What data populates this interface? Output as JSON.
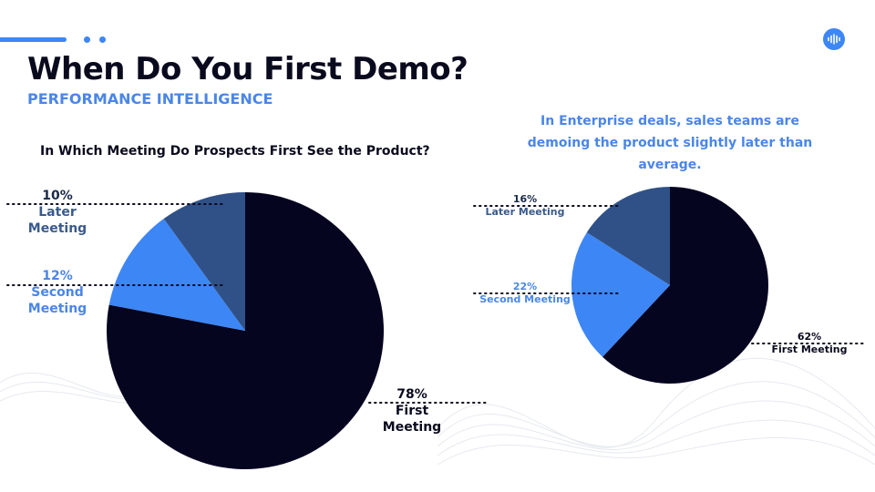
{
  "slide": {
    "title": "When Do You First Demo?",
    "subtitle": "PERFORMANCE INTELLIGENCE",
    "chart_question": "In Which Meeting Do Prospects First See the Product?",
    "insight": "In Enterprise deals, sales teams are demoing the product slightly later than average."
  },
  "colors": {
    "navy": "#050520",
    "mid_blue": "#2f5187",
    "bright_blue": "#3d86f5",
    "label_blue": "#4a86e8",
    "accent": "#3d86f5"
  },
  "icons": {
    "logo": "sound-wave-icon"
  },
  "labels": {
    "all": {
      "later_pct": "10%",
      "later_name": "Later Meeting",
      "second_pct": "12%",
      "second_name": "Second\nMeeting",
      "first_pct": "78%",
      "first_name": "First Meeting"
    },
    "enterprise": {
      "later_pct": "16%",
      "later_name": "Later Meeting",
      "second_pct": "22%",
      "second_name": "Second Meeting",
      "first_pct": "62%",
      "first_name": "First Meeting"
    }
  },
  "chart_data": [
    {
      "type": "pie",
      "title": "In Which Meeting Do Prospects First See the Product?",
      "categories": [
        "First Meeting",
        "Second Meeting",
        "Later Meeting"
      ],
      "values": [
        78,
        12,
        10
      ],
      "colors": [
        "#050520",
        "#3d86f5",
        "#2f5187"
      ]
    },
    {
      "type": "pie",
      "title": "",
      "categories": [
        "First Meeting",
        "Second Meeting",
        "Later Meeting"
      ],
      "values": [
        62,
        22,
        16
      ],
      "colors": [
        "#050520",
        "#3d86f5",
        "#2f5187"
      ]
    }
  ]
}
